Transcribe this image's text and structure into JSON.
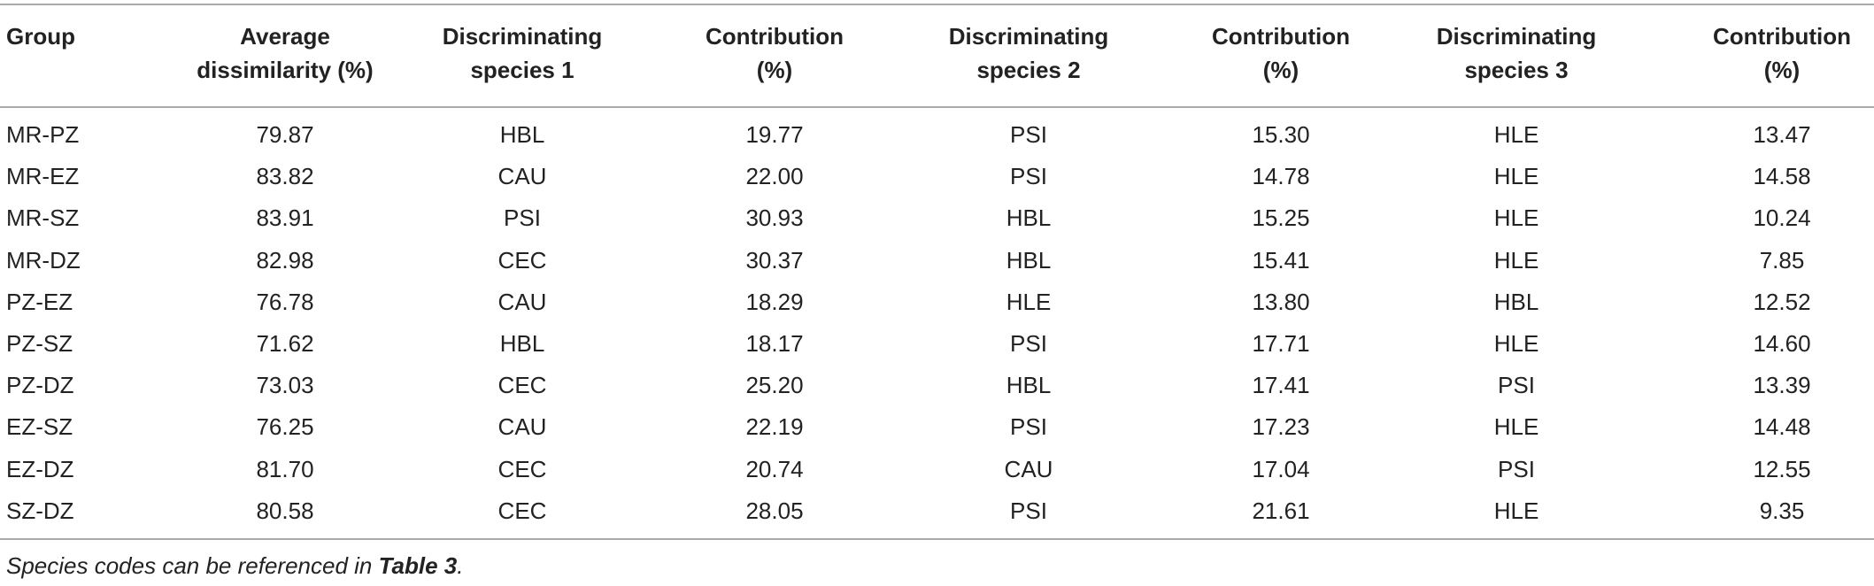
{
  "table": {
    "header": [
      [
        "Group"
      ],
      [
        "Average",
        "dissimilarity (%)"
      ],
      [
        "Discriminating",
        "species 1"
      ],
      [
        "Contribution",
        "(%)"
      ],
      [
        "Discriminating",
        "species 2"
      ],
      [
        "Contribution",
        "(%)"
      ],
      [
        "Discriminating",
        "species 3"
      ],
      [
        "Contribution",
        "(%)"
      ]
    ],
    "rows": [
      [
        "MR-PZ",
        "79.87",
        "HBL",
        "19.77",
        "PSI",
        "15.30",
        "HLE",
        "13.47"
      ],
      [
        "MR-EZ",
        "83.82",
        "CAU",
        "22.00",
        "PSI",
        "14.78",
        "HLE",
        "14.58"
      ],
      [
        "MR-SZ",
        "83.91",
        "PSI",
        "30.93",
        "HBL",
        "15.25",
        "HLE",
        "10.24"
      ],
      [
        "MR-DZ",
        "82.98",
        "CEC",
        "30.37",
        "HBL",
        "15.41",
        "HLE",
        "7.85"
      ],
      [
        "PZ-EZ",
        "76.78",
        "CAU",
        "18.29",
        "HLE",
        "13.80",
        "HBL",
        "12.52"
      ],
      [
        "PZ-SZ",
        "71.62",
        "HBL",
        "18.17",
        "PSI",
        "17.71",
        "HLE",
        "14.60"
      ],
      [
        "PZ-DZ",
        "73.03",
        "CEC",
        "25.20",
        "HBL",
        "17.41",
        "PSI",
        "13.39"
      ],
      [
        "EZ-SZ",
        "76.25",
        "CAU",
        "22.19",
        "PSI",
        "17.23",
        "HLE",
        "14.48"
      ],
      [
        "EZ-DZ",
        "81.70",
        "CEC",
        "20.74",
        "CAU",
        "17.04",
        "PSI",
        "12.55"
      ],
      [
        "SZ-DZ",
        "80.58",
        "CEC",
        "28.05",
        "PSI",
        "21.61",
        "HLE",
        "9.35"
      ]
    ]
  },
  "footnote": {
    "text": "Species codes can be referenced in",
    "ref": "Table 3",
    "end": "."
  }
}
